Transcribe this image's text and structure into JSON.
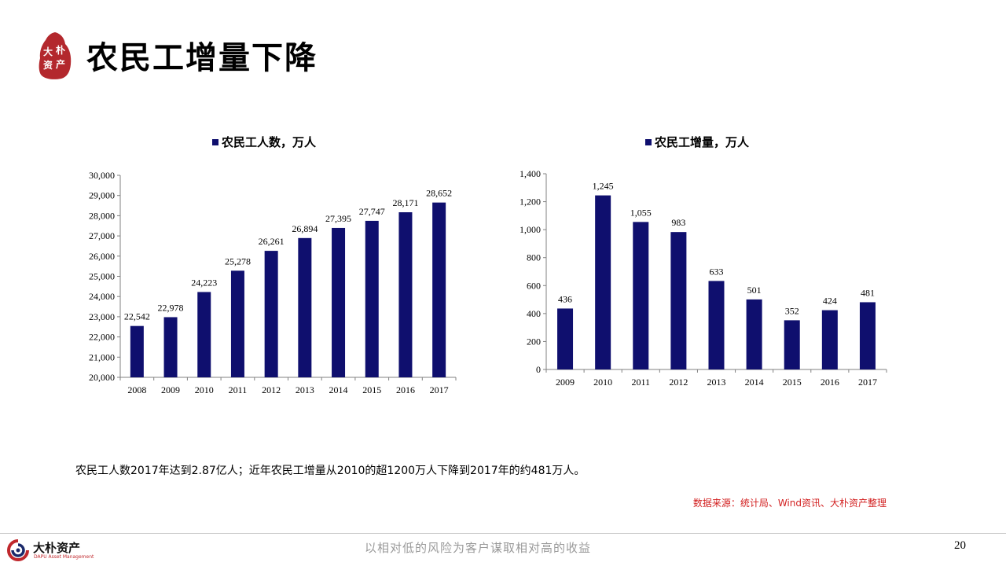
{
  "header": {
    "title": "农民工增量下降",
    "seal_text": [
      "大",
      "朴",
      "资",
      "产"
    ],
    "seal_color": "#b3282d"
  },
  "chart_data": [
    {
      "type": "bar",
      "legend": "农民工人数，万人",
      "categories": [
        "2008",
        "2009",
        "2010",
        "2011",
        "2012",
        "2013",
        "2014",
        "2015",
        "2016",
        "2017"
      ],
      "values": [
        22542,
        22978,
        24223,
        25278,
        26261,
        26894,
        27395,
        27747,
        28171,
        28652
      ],
      "value_labels": [
        "22,542",
        "22,978",
        "24,223",
        "25,278",
        "26,261",
        "26,894",
        "27,395",
        "27,747",
        "28,171",
        "28,652"
      ],
      "ylim": [
        20000,
        30000
      ],
      "yticks": [
        20000,
        21000,
        22000,
        23000,
        24000,
        25000,
        26000,
        27000,
        28000,
        29000,
        30000
      ],
      "ytick_labels": [
        "20,000",
        "21,000",
        "22,000",
        "23,000",
        "24,000",
        "25,000",
        "26,000",
        "27,000",
        "28,000",
        "29,000",
        "30,000"
      ],
      "bar_color": "#0f0f6e",
      "legend_position": "top-center",
      "grid": false
    },
    {
      "type": "bar",
      "legend": "农民工增量，万人",
      "categories": [
        "2009",
        "2010",
        "2011",
        "2012",
        "2013",
        "2014",
        "2015",
        "2016",
        "2017"
      ],
      "values": [
        436,
        1245,
        1055,
        983,
        633,
        501,
        352,
        424,
        481
      ],
      "value_labels": [
        "436",
        "1,245",
        "1,055",
        "983",
        "633",
        "501",
        "352",
        "424",
        "481"
      ],
      "ylim": [
        0,
        1400
      ],
      "yticks": [
        0,
        200,
        400,
        600,
        800,
        1000,
        1200,
        1400
      ],
      "ytick_labels": [
        "0",
        "200",
        "400",
        "600",
        "800",
        "1,000",
        "1,200",
        "1,400"
      ],
      "bar_color": "#0f0f6e",
      "legend_position": "top-center",
      "grid": false
    }
  ],
  "caption": "农民工人数2017年达到2.87亿人；近年农民工增量从2010的超1200万人下降到2017年的约481万人。",
  "source": "数据来源：统计局、Wind资讯、大朴资产整理",
  "footer": {
    "logo_name": "大朴资产",
    "logo_sub": "DAPU Asset Management",
    "slogan": "以相对低的风险为客户谋取相对高的收益",
    "page_number": "20"
  },
  "colors": {
    "accent_red": "#c0282d",
    "source_red": "#d21f1f",
    "bar_navy": "#0f0f6e"
  }
}
